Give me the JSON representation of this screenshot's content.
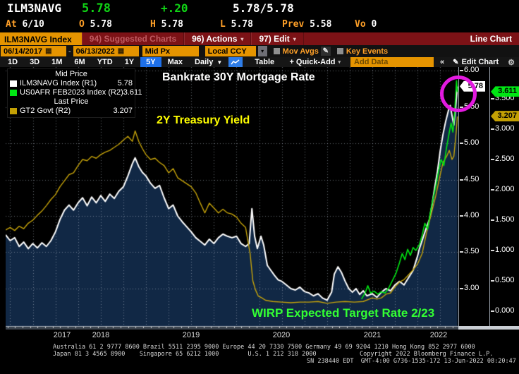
{
  "quote": {
    "ticker": "ILM3NAVG",
    "last": "5.78",
    "change": "+.20",
    "bid_ask": "5.78/5.78",
    "row2": [
      {
        "label": "At",
        "value": "6/10"
      },
      {
        "label": "O",
        "value": "5.78"
      },
      {
        "label": "H",
        "value": "5.78"
      },
      {
        "label": "L",
        "value": "5.78"
      },
      {
        "label": "Prev",
        "value": "5.58"
      },
      {
        "label": "Vo",
        "value": "0"
      }
    ]
  },
  "menu_bar": {
    "tab": "ILM3NAVG Index",
    "suggested_charts": "94) Suggested Charts",
    "actions": "96) Actions",
    "edit": "97) Edit",
    "right_label": "Line Chart"
  },
  "toolbar": {
    "date_from": "06/14/2017",
    "date_to": "06/13/2022",
    "price_field": "Mid Px",
    "currency": "Local CCY",
    "mov_avgs": "Mov Avgs",
    "key_events": "Key Events"
  },
  "period_bar": {
    "periods": [
      "1D",
      "3D",
      "1M",
      "6M",
      "YTD",
      "1Y",
      "5Y",
      "Max"
    ],
    "selected": "5Y",
    "frequency": "Daily",
    "table": "Table",
    "quick_add": "+ Quick-Add",
    "add_data_placeholder": "Add Data",
    "collapse": "«",
    "edit_chart": "Edit Chart"
  },
  "legend": {
    "group1_header": "Mid Price",
    "group2_header": "Last Price",
    "items": [
      {
        "name": "ILM3NAVG Index  (R1)",
        "value": "5.78",
        "color": "#ffffff",
        "group": 1
      },
      {
        "name": "US0AFR FEB2023 Index  (R2)",
        "value": "3.611",
        "color": "#00e613",
        "group": 1
      },
      {
        "name": "GT2 Govt  (R2)",
        "value": "3.207",
        "color": "#c3a004",
        "group": 2
      }
    ]
  },
  "annotations": {
    "title": "Bankrate 30Y Mortgage Rate",
    "treasury": "2Y Treasury Yield",
    "wirp": "WIRP Expected Target Rate 2/23"
  },
  "axis": {
    "r1_ticks": [
      "6.00",
      "5.50",
      "5.00",
      "4.50",
      "4.00",
      "3.50",
      "3.00"
    ],
    "r2_ticks": [
      "3.500",
      "3.000",
      "2.500",
      "2.000",
      "1.500",
      "1.000",
      "0.500",
      "0.000"
    ],
    "r1_last_tag": {
      "text": "5.78",
      "bg": "#ffffff"
    },
    "r2_green_tag": {
      "text": "3.611",
      "bg": "#00e613"
    },
    "r2_amber_tag": {
      "text": "3.207",
      "bg": "#c3a004"
    },
    "years": [
      "2017",
      "2018",
      "2019",
      "2020",
      "2021",
      "2022"
    ]
  },
  "chart_data": {
    "type": "line",
    "title": "Bankrate 30Y Mortgage Rate vs 2Y Treasury Yield vs WIRP Expected Target Rate 2/23",
    "x_range": [
      2017.45,
      2022.45
    ],
    "r1_range": [
      2.485,
      6.049
    ],
    "r2_range": [
      -0.244,
      4.023
    ],
    "grid_r1_values": [
      6.0,
      5.5,
      5.0,
      4.5,
      4.0,
      3.5,
      3.0
    ],
    "grid_quarter_start": 2017.5,
    "grid_quarter_end": 2022.25,
    "grid_color": "rgba(200,210,225,0.5)",
    "area_fill": "#112845",
    "legend_position": "top-left",
    "series": [
      {
        "name": "ILM3NAVG Index",
        "axis": "r1",
        "color": "#ffffff",
        "width": 2,
        "area": true,
        "points": [
          [
            2017.45,
            3.74
          ],
          [
            2017.5,
            3.66
          ],
          [
            2017.55,
            3.7
          ],
          [
            2017.6,
            3.58
          ],
          [
            2017.65,
            3.64
          ],
          [
            2017.7,
            3.55
          ],
          [
            2017.75,
            3.62
          ],
          [
            2017.8,
            3.56
          ],
          [
            2017.85,
            3.63
          ],
          [
            2017.9,
            3.58
          ],
          [
            2017.95,
            3.66
          ],
          [
            2018.0,
            3.78
          ],
          [
            2018.05,
            3.95
          ],
          [
            2018.1,
            4.08
          ],
          [
            2018.15,
            4.15
          ],
          [
            2018.2,
            4.08
          ],
          [
            2018.25,
            4.18
          ],
          [
            2018.3,
            4.25
          ],
          [
            2018.35,
            4.14
          ],
          [
            2018.4,
            4.26
          ],
          [
            2018.45,
            4.18
          ],
          [
            2018.5,
            4.28
          ],
          [
            2018.55,
            4.2
          ],
          [
            2018.6,
            4.3
          ],
          [
            2018.65,
            4.24
          ],
          [
            2018.7,
            4.34
          ],
          [
            2018.75,
            4.4
          ],
          [
            2018.8,
            4.55
          ],
          [
            2018.85,
            4.72
          ],
          [
            2018.88,
            4.8
          ],
          [
            2018.92,
            4.68
          ],
          [
            2018.96,
            4.6
          ],
          [
            2019.0,
            4.55
          ],
          [
            2019.05,
            4.45
          ],
          [
            2019.1,
            4.38
          ],
          [
            2019.15,
            4.42
          ],
          [
            2019.2,
            4.25
          ],
          [
            2019.25,
            4.1
          ],
          [
            2019.3,
            4.15
          ],
          [
            2019.35,
            4.0
          ],
          [
            2019.4,
            3.92
          ],
          [
            2019.45,
            3.85
          ],
          [
            2019.5,
            3.78
          ],
          [
            2019.55,
            3.7
          ],
          [
            2019.6,
            3.65
          ],
          [
            2019.65,
            3.6
          ],
          [
            2019.7,
            3.68
          ],
          [
            2019.75,
            3.62
          ],
          [
            2019.8,
            3.7
          ],
          [
            2019.85,
            3.75
          ],
          [
            2019.9,
            3.72
          ],
          [
            2019.95,
            3.7
          ],
          [
            2020.0,
            3.72
          ],
          [
            2020.05,
            3.62
          ],
          [
            2020.1,
            3.58
          ],
          [
            2020.14,
            3.62
          ],
          [
            2020.17,
            4.1
          ],
          [
            2020.2,
            3.72
          ],
          [
            2020.23,
            3.55
          ],
          [
            2020.27,
            3.72
          ],
          [
            2020.3,
            3.6
          ],
          [
            2020.34,
            3.32
          ],
          [
            2020.38,
            3.25
          ],
          [
            2020.42,
            3.18
          ],
          [
            2020.46,
            3.12
          ],
          [
            2020.5,
            3.1
          ],
          [
            2020.55,
            3.05
          ],
          [
            2020.6,
            3.0
          ],
          [
            2020.65,
            2.98
          ],
          [
            2020.7,
            3.02
          ],
          [
            2020.75,
            2.96
          ],
          [
            2020.8,
            2.94
          ],
          [
            2020.85,
            2.9
          ],
          [
            2020.9,
            2.93
          ],
          [
            2020.95,
            2.87
          ],
          [
            2021.0,
            2.84
          ],
          [
            2021.05,
            2.95
          ],
          [
            2021.08,
            3.2
          ],
          [
            2021.12,
            3.3
          ],
          [
            2021.16,
            3.22
          ],
          [
            2021.2,
            3.1
          ],
          [
            2021.24,
            3.0
          ],
          [
            2021.28,
            2.95
          ],
          [
            2021.32,
            3.0
          ],
          [
            2021.36,
            2.92
          ],
          [
            2021.4,
            2.97
          ],
          [
            2021.44,
            2.9
          ],
          [
            2021.5,
            2.93
          ],
          [
            2021.55,
            2.88
          ],
          [
            2021.6,
            2.95
          ],
          [
            2021.65,
            3.0
          ],
          [
            2021.7,
            2.97
          ],
          [
            2021.75,
            3.05
          ],
          [
            2021.8,
            3.1
          ],
          [
            2021.85,
            3.05
          ],
          [
            2021.9,
            3.15
          ],
          [
            2021.95,
            3.25
          ],
          [
            2022.0,
            3.45
          ],
          [
            2022.02,
            3.55
          ],
          [
            2022.06,
            3.7
          ],
          [
            2022.1,
            3.85
          ],
          [
            2022.13,
            3.95
          ],
          [
            2022.16,
            4.16
          ],
          [
            2022.19,
            4.4
          ],
          [
            2022.22,
            4.62
          ],
          [
            2022.25,
            4.9
          ],
          [
            2022.28,
            5.12
          ],
          [
            2022.31,
            5.3
          ],
          [
            2022.34,
            5.45
          ],
          [
            2022.36,
            5.52
          ],
          [
            2022.38,
            5.38
          ],
          [
            2022.4,
            5.25
          ],
          [
            2022.42,
            5.5
          ],
          [
            2022.44,
            5.78
          ]
        ]
      },
      {
        "name": "GT2 Govt",
        "axis": "r2",
        "color": "#c7a40a",
        "width": 1.4,
        "area": false,
        "points": [
          [
            2017.45,
            1.34
          ],
          [
            2017.5,
            1.38
          ],
          [
            2017.55,
            1.33
          ],
          [
            2017.6,
            1.4
          ],
          [
            2017.65,
            1.36
          ],
          [
            2017.7,
            1.45
          ],
          [
            2017.75,
            1.5
          ],
          [
            2017.8,
            1.58
          ],
          [
            2017.85,
            1.65
          ],
          [
            2017.9,
            1.74
          ],
          [
            2017.95,
            1.84
          ],
          [
            2018.0,
            1.92
          ],
          [
            2018.05,
            2.05
          ],
          [
            2018.1,
            2.15
          ],
          [
            2018.15,
            2.25
          ],
          [
            2018.2,
            2.28
          ],
          [
            2018.25,
            2.4
          ],
          [
            2018.3,
            2.5
          ],
          [
            2018.35,
            2.48
          ],
          [
            2018.4,
            2.55
          ],
          [
            2018.45,
            2.52
          ],
          [
            2018.5,
            2.58
          ],
          [
            2018.55,
            2.62
          ],
          [
            2018.6,
            2.65
          ],
          [
            2018.65,
            2.7
          ],
          [
            2018.7,
            2.75
          ],
          [
            2018.75,
            2.82
          ],
          [
            2018.8,
            2.88
          ],
          [
            2018.85,
            2.8
          ],
          [
            2018.88,
            2.97
          ],
          [
            2018.92,
            2.8
          ],
          [
            2018.96,
            2.68
          ],
          [
            2019.0,
            2.58
          ],
          [
            2019.05,
            2.5
          ],
          [
            2019.1,
            2.52
          ],
          [
            2019.15,
            2.45
          ],
          [
            2019.2,
            2.4
          ],
          [
            2019.25,
            2.28
          ],
          [
            2019.3,
            2.35
          ],
          [
            2019.35,
            2.2
          ],
          [
            2019.4,
            2.15
          ],
          [
            2019.45,
            2.1
          ],
          [
            2019.5,
            2.05
          ],
          [
            2019.55,
            1.95
          ],
          [
            2019.6,
            1.78
          ],
          [
            2019.65,
            1.62
          ],
          [
            2019.7,
            1.78
          ],
          [
            2019.75,
            1.7
          ],
          [
            2019.8,
            1.62
          ],
          [
            2019.85,
            1.68
          ],
          [
            2019.9,
            1.62
          ],
          [
            2019.95,
            1.6
          ],
          [
            2020.0,
            1.55
          ],
          [
            2020.05,
            1.45
          ],
          [
            2020.1,
            1.38
          ],
          [
            2020.15,
            0.95
          ],
          [
            2020.18,
            0.5
          ],
          [
            2020.21,
            0.35
          ],
          [
            2020.24,
            0.25
          ],
          [
            2020.28,
            0.22
          ],
          [
            2020.32,
            0.18
          ],
          [
            2020.4,
            0.16
          ],
          [
            2020.5,
            0.15
          ],
          [
            2020.6,
            0.14
          ],
          [
            2020.7,
            0.15
          ],
          [
            2020.8,
            0.15
          ],
          [
            2020.9,
            0.16
          ],
          [
            2021.0,
            0.13
          ],
          [
            2021.1,
            0.15
          ],
          [
            2021.2,
            0.16
          ],
          [
            2021.3,
            0.15
          ],
          [
            2021.4,
            0.16
          ],
          [
            2021.5,
            0.22
          ],
          [
            2021.55,
            0.2
          ],
          [
            2021.6,
            0.22
          ],
          [
            2021.65,
            0.28
          ],
          [
            2021.7,
            0.3
          ],
          [
            2021.75,
            0.4
          ],
          [
            2021.8,
            0.48
          ],
          [
            2021.85,
            0.52
          ],
          [
            2021.9,
            0.6
          ],
          [
            2021.95,
            0.68
          ],
          [
            2022.0,
            0.78
          ],
          [
            2022.05,
            0.95
          ],
          [
            2022.1,
            1.3
          ],
          [
            2022.15,
            1.6
          ],
          [
            2022.2,
            1.9
          ],
          [
            2022.25,
            2.25
          ],
          [
            2022.28,
            2.45
          ],
          [
            2022.32,
            2.55
          ],
          [
            2022.35,
            2.65
          ],
          [
            2022.38,
            2.5
          ],
          [
            2022.4,
            2.55
          ],
          [
            2022.42,
            2.85
          ],
          [
            2022.44,
            3.207
          ]
        ]
      },
      {
        "name": "US0AFR FEB2023 Index",
        "axis": "r2",
        "color": "#00e613",
        "width": 1.6,
        "area": false,
        "points": [
          [
            2021.38,
            0.2
          ],
          [
            2021.42,
            0.3
          ],
          [
            2021.45,
            0.42
          ],
          [
            2021.48,
            0.3
          ],
          [
            2021.52,
            0.33
          ],
          [
            2021.56,
            0.28
          ],
          [
            2021.6,
            0.32
          ],
          [
            2021.64,
            0.3
          ],
          [
            2021.68,
            0.38
          ],
          [
            2021.72,
            0.5
          ],
          [
            2021.76,
            0.62
          ],
          [
            2021.8,
            0.8
          ],
          [
            2021.83,
            0.95
          ],
          [
            2021.86,
            0.85
          ],
          [
            2021.89,
            1.02
          ],
          [
            2021.92,
            0.92
          ],
          [
            2021.95,
            1.05
          ],
          [
            2021.98,
            1.0
          ],
          [
            2022.02,
            1.1
          ],
          [
            2022.05,
            1.25
          ],
          [
            2022.08,
            1.45
          ],
          [
            2022.11,
            1.35
          ],
          [
            2022.14,
            1.62
          ],
          [
            2022.17,
            1.85
          ],
          [
            2022.2,
            2.05
          ],
          [
            2022.23,
            2.3
          ],
          [
            2022.26,
            2.5
          ],
          [
            2022.29,
            2.4
          ],
          [
            2022.32,
            2.7
          ],
          [
            2022.35,
            2.95
          ],
          [
            2022.37,
            3.1
          ],
          [
            2022.39,
            2.95
          ],
          [
            2022.41,
            3.3
          ],
          [
            2022.43,
            3.8
          ],
          [
            2022.44,
            3.611
          ]
        ]
      }
    ]
  },
  "footer": {
    "lines": [
      "Australia 61 2 9777 8600 Brazil 5511 2395 9000 Europe 44 20 7330 7500 Germany 49 69 9204 1210 Hong Kong 852 2977 6000",
      "Japan 81 3 4565 8900    Singapore 65 6212 1000        U.S. 1 212 318 2000            Copyright 2022 Bloomberg Finance L.P.",
      "SN 238440 EDT  GMT-4:00 G736-1535-172 13-Jun-2022 08:20:47"
    ]
  }
}
